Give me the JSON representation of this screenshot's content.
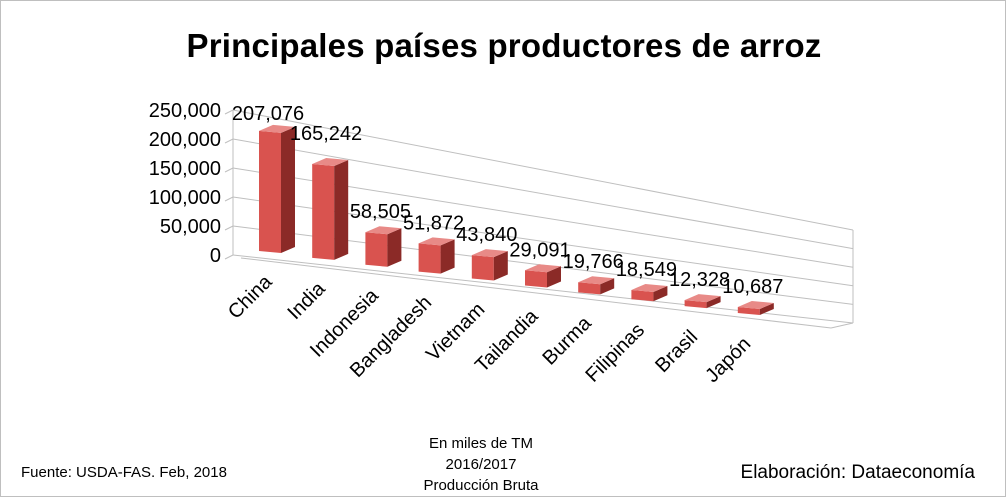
{
  "chart_data": {
    "type": "bar",
    "title": "Principales países productores de arroz",
    "categories": [
      "China",
      "India",
      "Indonesia",
      "Bangladesh",
      "Vietnam",
      "Tailandia",
      "Burma",
      "Filipinas",
      "Brasil",
      "Japón"
    ],
    "values": [
      207076,
      165242,
      58505,
      51872,
      43840,
      29091,
      19766,
      18549,
      12328,
      10687
    ],
    "data_labels": [
      "207,076",
      "165,242",
      "58,505",
      "51,872",
      "43,840",
      "29,091",
      "19,766",
      "18,549",
      "12,328",
      "10,687"
    ],
    "yticks": [
      "0",
      "50,000",
      "100,000",
      "150,000",
      "200,000",
      "250,000"
    ],
    "ylim": [
      0,
      250000
    ],
    "grid": true,
    "bar_color": "#d9534f",
    "style": "3d-column"
  },
  "notes": {
    "unit": "En miles de TM",
    "period": "2016/2017",
    "measure": "Producción Bruta"
  },
  "footer": {
    "source": "Fuente:  USDA-FAS. Feb, 2018",
    "credit": "Elaboración: Dataeconomía"
  }
}
